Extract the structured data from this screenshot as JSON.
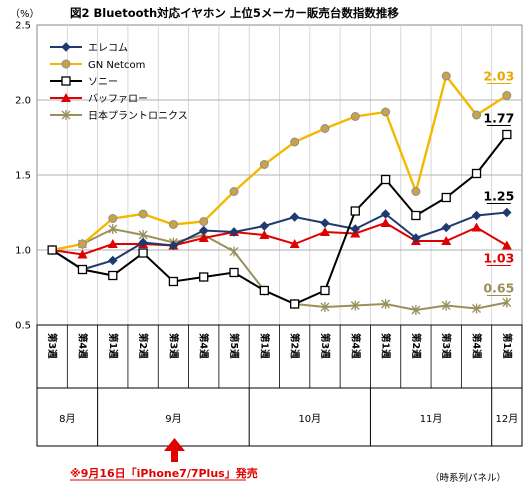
{
  "chart_data": {
    "type": "line",
    "title": "図2 Bluetooth対応イヤホン 上位5メーカー販売台数指数推移",
    "y_unit": "（%）",
    "ylim": [
      0.5,
      2.5
    ],
    "yticks": [
      "0.5",
      "1.0",
      "1.5",
      "2.0",
      "2.5"
    ],
    "grid": true,
    "legend_position": "top-left",
    "categories": [
      "第3週",
      "第4週",
      "第1週",
      "第2週",
      "第3週",
      "第4週",
      "第5週",
      "第1週",
      "第2週",
      "第3週",
      "第4週",
      "第1週",
      "第2週",
      "第3週",
      "第4週",
      "第1週"
    ],
    "months": [
      {
        "label": "8月",
        "start": 0,
        "end": 1
      },
      {
        "label": "9月",
        "start": 2,
        "end": 6
      },
      {
        "label": "10月",
        "start": 7,
        "end": 10
      },
      {
        "label": "11月",
        "start": 11,
        "end": 14
      },
      {
        "label": "12月",
        "start": 15,
        "end": 15
      }
    ],
    "series": [
      {
        "name": "エレコム",
        "color": "#1f3a6e",
        "marker": "diamond",
        "values": [
          1.0,
          0.87,
          0.93,
          1.05,
          1.03,
          1.13,
          1.12,
          1.16,
          1.22,
          1.18,
          1.14,
          1.24,
          1.08,
          1.15,
          1.23,
          1.25
        ],
        "end_label": "1.25",
        "end_label_color": "#000000"
      },
      {
        "name": "GN Netcom",
        "color": "#f5b800",
        "marker": "circle",
        "values": [
          1.0,
          1.04,
          1.21,
          1.24,
          1.17,
          1.19,
          1.39,
          1.57,
          1.72,
          1.81,
          1.89,
          1.92,
          1.39,
          2.16,
          1.9,
          2.03
        ],
        "end_label": "2.03",
        "end_label_color": "#e8a800"
      },
      {
        "name": "ソニー",
        "color": "#000000",
        "marker": "square",
        "values": [
          1.0,
          0.87,
          0.83,
          0.98,
          0.79,
          0.82,
          0.85,
          0.73,
          0.64,
          0.73,
          1.26,
          1.47,
          1.23,
          1.35,
          1.51,
          1.77
        ],
        "end_label": "1.77",
        "end_label_color": "#000000"
      },
      {
        "name": "バッファロー",
        "color": "#e00000",
        "marker": "triangle",
        "values": [
          1.0,
          0.97,
          1.04,
          1.04,
          1.03,
          1.08,
          1.12,
          1.1,
          1.04,
          1.12,
          1.11,
          1.18,
          1.06,
          1.06,
          1.15,
          1.03
        ],
        "end_label": "1.03",
        "end_label_color": "#e00000"
      },
      {
        "name": "日本プラントロニクス",
        "color": "#9b8f5a",
        "marker": "star",
        "values": [
          1.0,
          1.04,
          1.14,
          1.1,
          1.05,
          1.1,
          0.99,
          0.73,
          0.64,
          0.62,
          0.63,
          0.64,
          0.6,
          0.63,
          0.61,
          0.65
        ],
        "end_label": "0.65",
        "end_label_color": "#9b8f5a"
      }
    ],
    "annotation": "※9月16日「iPhone7/7Plus」発売",
    "annotation_color": "#e00000",
    "source": "（時系列パネル）"
  }
}
